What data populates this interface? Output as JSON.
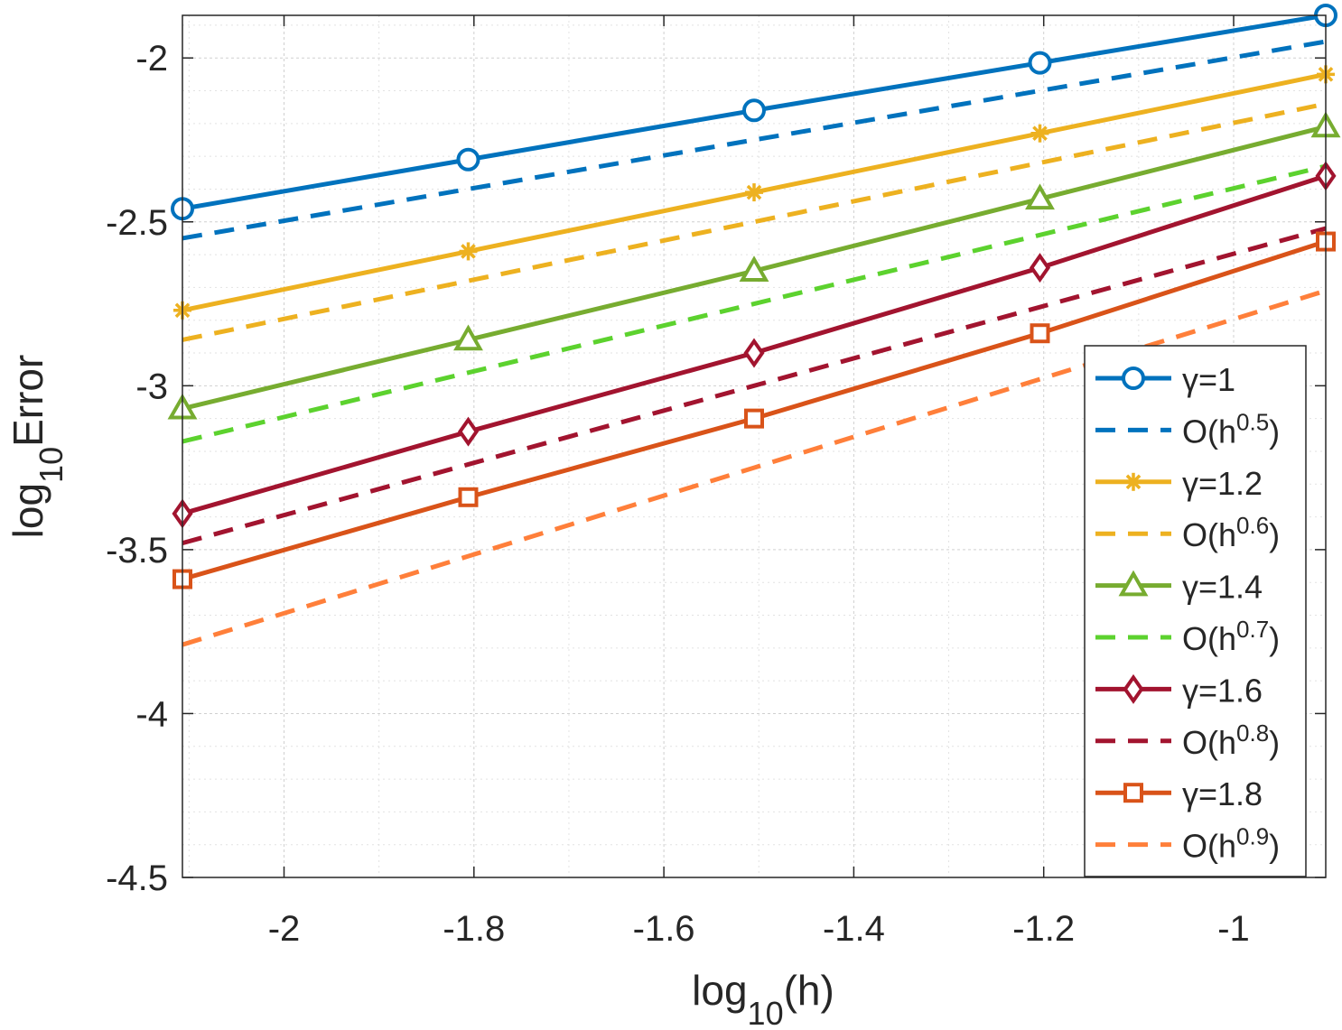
{
  "chart_data": {
    "type": "line",
    "title": "",
    "xlabel": {
      "base": "log",
      "sub": "10",
      "rest": "(h)"
    },
    "ylabel": {
      "base": "log",
      "sub": "10",
      "rest": "Error"
    },
    "xlim": [
      -2.107,
      -0.903
    ],
    "ylim": [
      -4.5,
      -1.87
    ],
    "xticks": [
      -2,
      -1.8,
      -1.6,
      -1.4,
      -1.2,
      -1
    ],
    "xtick_labels": [
      "-2",
      "-1.8",
      "-1.6",
      "-1.4",
      "-1.2",
      "-1"
    ],
    "yticks": [
      -4.5,
      -4,
      -3.5,
      -3,
      -2.5,
      -2
    ],
    "ytick_labels": [
      "-4.5",
      "-4",
      "-3.5",
      "-3",
      "-2.5",
      "-2"
    ],
    "grid": true,
    "minor_grid": true,
    "legend_position": "bottom-right",
    "x": [
      -2.107,
      -1.806,
      -1.505,
      -1.204,
      -0.903
    ],
    "series": [
      {
        "name": "γ=1",
        "legend": "γ=1",
        "style": "solid",
        "marker": "circle",
        "color": "#0072BD",
        "values": [
          -2.46,
          -2.31,
          -2.16,
          -2.015,
          -1.87
        ]
      },
      {
        "name": "O(h^0.5)",
        "legend": "O(h",
        "sup": "0.5",
        "tail": ")",
        "style": "dashed",
        "marker": "none",
        "color": "#0072BD",
        "values": [
          -2.55,
          -2.4,
          -2.25,
          -2.1,
          -1.95
        ]
      },
      {
        "name": "γ=1.2",
        "legend": "γ=1.2",
        "style": "solid",
        "marker": "asterisk",
        "color": "#EDB120",
        "values": [
          -2.77,
          -2.59,
          -2.41,
          -2.23,
          -2.05
        ]
      },
      {
        "name": "O(h^0.6)",
        "legend": "O(h",
        "sup": "0.6",
        "tail": ")",
        "style": "dashed",
        "marker": "none",
        "color": "#EDB120",
        "values": [
          -2.86,
          -2.68,
          -2.5,
          -2.32,
          -2.14
        ]
      },
      {
        "name": "γ=1.4",
        "legend": "γ=1.4",
        "style": "solid",
        "marker": "triangle",
        "color": "#77AC30",
        "values": [
          -3.07,
          -2.86,
          -2.65,
          -2.43,
          -2.21
        ]
      },
      {
        "name": "O(h^0.7)",
        "legend": "O(h",
        "sup": "0.7",
        "tail": ")",
        "style": "dashed",
        "marker": "none",
        "color": "#5CD22E",
        "values": [
          -3.17,
          -2.96,
          -2.75,
          -2.54,
          -2.33
        ]
      },
      {
        "name": "γ=1.6",
        "legend": "γ=1.6",
        "style": "solid",
        "marker": "diamond",
        "color": "#A2142F",
        "values": [
          -3.39,
          -3.14,
          -2.9,
          -2.64,
          -2.36
        ]
      },
      {
        "name": "O(h^0.8)",
        "legend": "O(h",
        "sup": "0.8",
        "tail": ")",
        "style": "dashed",
        "marker": "none",
        "color": "#A2142F",
        "values": [
          -3.48,
          -3.24,
          -3.0,
          -2.76,
          -2.52
        ]
      },
      {
        "name": "γ=1.8",
        "legend": "γ=1.8",
        "style": "solid",
        "marker": "square",
        "color": "#D95319",
        "values": [
          -3.59,
          -3.34,
          -3.1,
          -2.84,
          -2.56
        ]
      },
      {
        "name": "O(h^0.9)",
        "legend": "O(h",
        "sup": "0.9",
        "tail": ")",
        "style": "dashed",
        "marker": "none",
        "color": "#FF7F3A",
        "values": [
          -3.79,
          -3.52,
          -3.25,
          -2.98,
          -2.71
        ]
      }
    ]
  }
}
